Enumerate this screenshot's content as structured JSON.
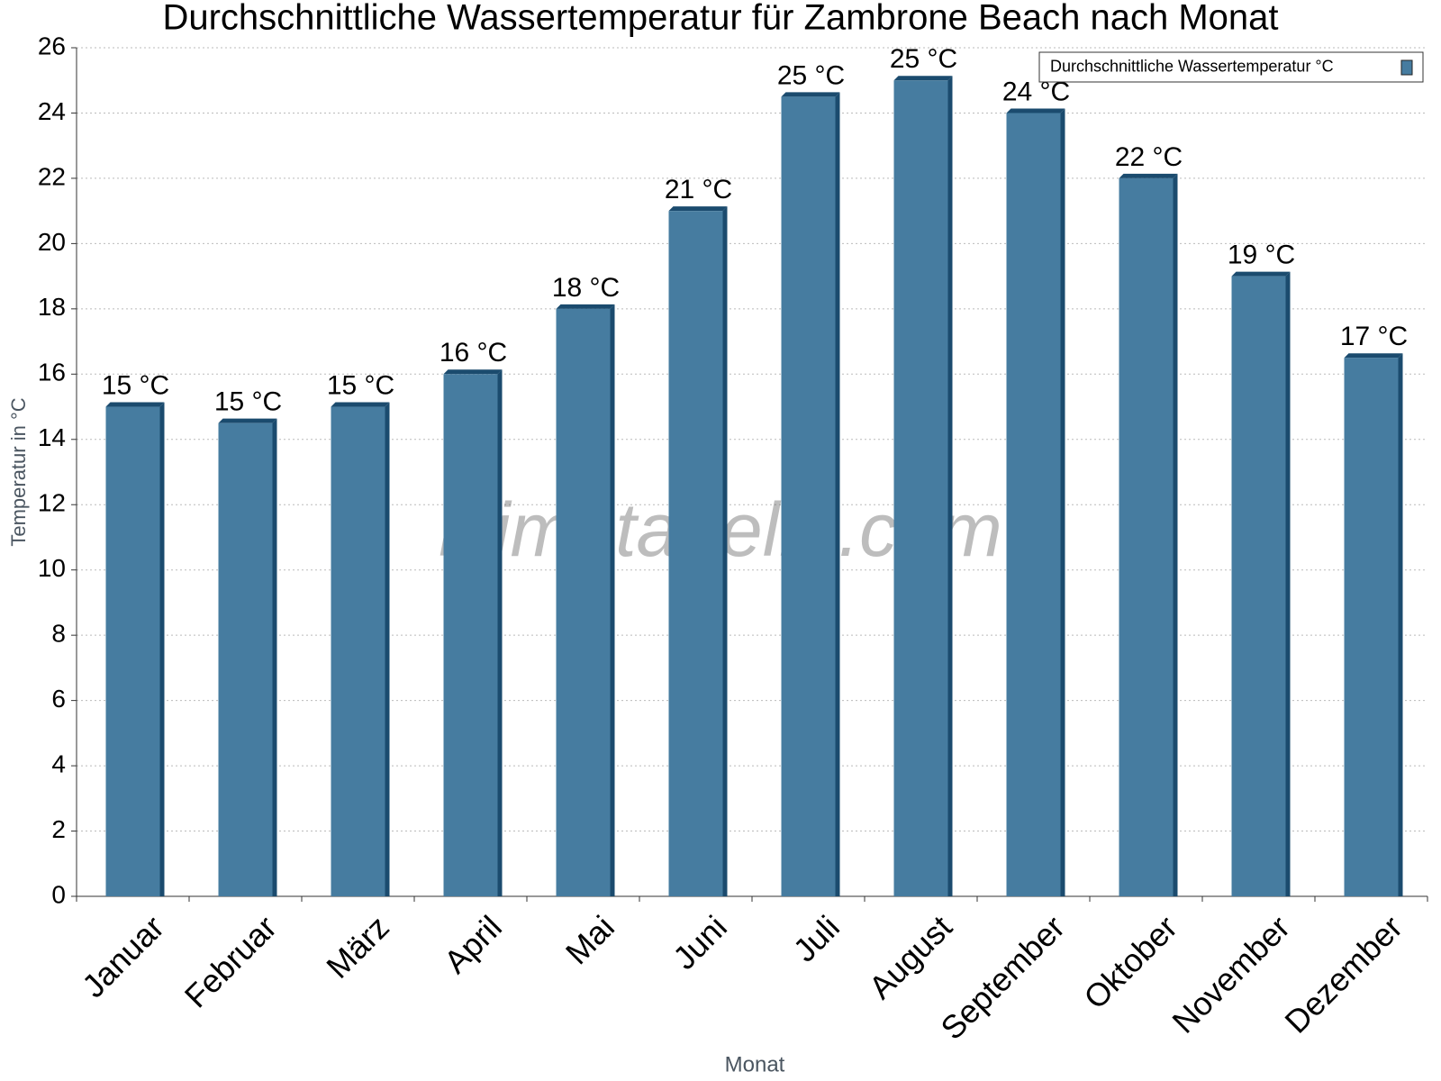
{
  "chart_data": {
    "type": "bar",
    "title": "Durchschnittliche Wassertemperatur für Zambrone Beach nach Monat",
    "x_label": "Monat",
    "y_label": "Temperatur in °C",
    "watermark": "klimatabelle.com",
    "categories": [
      "Januar",
      "Februar",
      "März",
      "April",
      "Mai",
      "Juni",
      "Juli",
      "August",
      "September",
      "Oktober",
      "November",
      "Dezember"
    ],
    "series": [
      {
        "name": "Durchschnittliche Wassertemperatur °C",
        "color": "#467ca0",
        "values": [
          15,
          14.5,
          15,
          16,
          18,
          21,
          24.5,
          25,
          24,
          22,
          19,
          16.5
        ],
        "value_labels": [
          "15 °C",
          "15 °C",
          "15 °C",
          "16 °C",
          "18 °C",
          "21 °C",
          "25 °C",
          "25 °C",
          "24 °C",
          "22 °C",
          "19 °C",
          "17 °C"
        ]
      }
    ],
    "ylim": [
      0,
      26
    ],
    "yticks": [
      0,
      2,
      4,
      6,
      8,
      10,
      12,
      14,
      16,
      18,
      20,
      22,
      24,
      26
    ],
    "grid": true,
    "legend": "top-right"
  }
}
